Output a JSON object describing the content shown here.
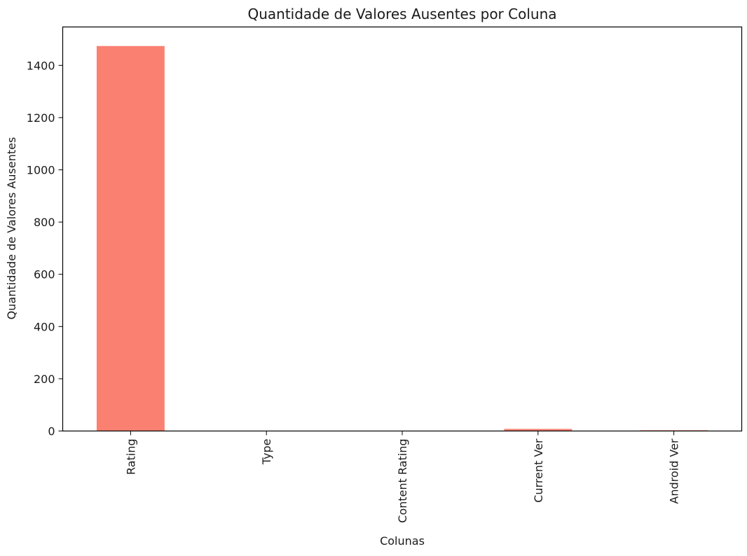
{
  "chart_data": {
    "type": "bar",
    "title": "Quantidade de Valores Ausentes por Coluna",
    "xlabel": "Colunas",
    "ylabel": "Quantidade de Valores Ausentes",
    "categories": [
      "Rating",
      "Type",
      "Content Rating",
      "Current Ver",
      "Android Ver"
    ],
    "values": [
      1474,
      1,
      1,
      8,
      3
    ],
    "ylim": [
      0,
      1547
    ],
    "yticks": [
      0,
      200,
      400,
      600,
      800,
      1000,
      1200,
      1400
    ],
    "grid": false,
    "bar_color": "#fa8072"
  }
}
